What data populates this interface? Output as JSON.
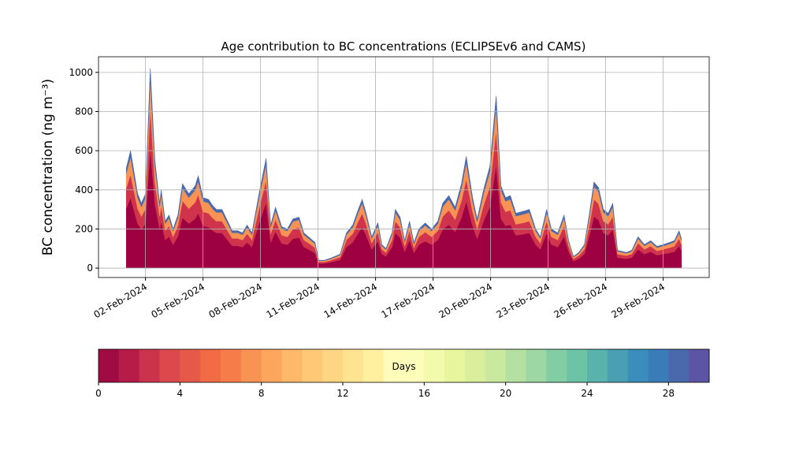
{
  "chart_data": {
    "type": "stacked_area",
    "title": "Age contribution to BC concentrations (ECLIPSEv6 and CAMS)",
    "ylabel": "BC concentration (ng m⁻³)",
    "x": [
      1.0,
      1.22,
      1.59,
      1.79,
      2.0,
      2.25,
      2.49,
      2.74,
      2.82,
      3.03,
      3.23,
      3.44,
      3.69,
      3.93,
      4.26,
      4.59,
      4.75,
      5.0,
      5.29,
      5.5,
      5.7,
      5.99,
      6.23,
      6.52,
      6.81,
      7.06,
      7.3,
      7.55,
      7.96,
      8.29,
      8.53,
      8.78,
      9.11,
      9.4,
      9.69,
      10.01,
      10.26,
      10.5,
      10.84,
      11.04,
      11.33,
      11.66,
      12.15,
      12.48,
      12.81,
      13.1,
      13.3,
      13.51,
      13.8,
      14.12,
      14.33,
      14.54,
      14.86,
      15.03,
      15.28,
      15.52,
      15.77,
      16.0,
      16.26,
      16.59,
      16.92,
      17.25,
      17.5,
      17.82,
      18.15,
      18.48,
      18.73,
      19.06,
      19.3,
      19.63,
      19.96,
      20.29,
      20.54,
      20.78,
      21.03,
      21.32,
      21.73,
      22.02,
      22.35,
      22.59,
      22.92,
      23.17,
      23.5,
      23.83,
      24.07,
      24.32,
      24.6,
      24.89,
      25.14,
      25.39,
      25.63,
      25.88,
      26.13,
      26.37,
      26.62,
      27.07,
      27.36,
      27.69,
      28.02,
      28.35,
      28.68,
      29.0,
      29.33,
      29.58,
      29.83,
      29.95
    ],
    "series": [
      {
        "color": "#9e0142",
        "values": [
          306,
          360,
          228,
          198,
          228,
          612,
          330,
          198,
          240,
          144,
          162,
          120,
          162,
          258,
          228,
          252,
          282,
          216,
          210,
          192,
          180,
          180,
          150,
          114,
          114,
          108,
          132,
          108,
          240,
          336,
          132,
          186,
          126,
          120,
          150,
          156,
          108,
          96,
          78,
          24,
          24,
          30,
          42,
          108,
          132,
          180,
          210,
          168,
          96,
          138,
          72,
          60,
          108,
          180,
          156,
          84,
          144,
          78,
          120,
          138,
          120,
          144,
          198,
          222,
          186,
          258,
          342,
          216,
          150,
          240,
          312,
          528,
          252,
          216,
          222,
          168,
          174,
          180,
          120,
          96,
          180,
          120,
          108,
          162,
          84,
          36,
          48,
          72,
          162,
          264,
          246,
          180,
          168,
          198,
          54,
          48,
          54,
          96,
          72,
          84,
          66,
          72,
          78,
          84,
          114,
          90
        ]
      },
      {
        "color": "#d0344d",
        "values": [
          102,
          120,
          76,
          66,
          76,
          204,
          110,
          66,
          80,
          48,
          54,
          40,
          54,
          86,
          76,
          84,
          94,
          72,
          70,
          64,
          60,
          60,
          50,
          38,
          38,
          36,
          44,
          36,
          80,
          112,
          44,
          62,
          42,
          40,
          50,
          52,
          36,
          32,
          26,
          8,
          8,
          10,
          14,
          36,
          44,
          60,
          70,
          56,
          32,
          46,
          24,
          20,
          36,
          60,
          52,
          28,
          48,
          26,
          40,
          46,
          40,
          48,
          66,
          74,
          62,
          86,
          114,
          72,
          50,
          80,
          104,
          176,
          84,
          72,
          74,
          56,
          58,
          60,
          40,
          32,
          60,
          40,
          36,
          54,
          28,
          12,
          16,
          24,
          54,
          88,
          82,
          60,
          56,
          66,
          18,
          16,
          18,
          32,
          24,
          28,
          22,
          24,
          26,
          28,
          38,
          30
        ]
      },
      {
        "color": "#f99354",
        "values": [
          77,
          90,
          57,
          50,
          57,
          153,
          83,
          50,
          60,
          36,
          41,
          30,
          41,
          65,
          57,
          63,
          71,
          54,
          53,
          48,
          45,
          45,
          38,
          29,
          29,
          27,
          33,
          27,
          60,
          84,
          33,
          47,
          32,
          30,
          38,
          39,
          27,
          24,
          20,
          6,
          6,
          8,
          11,
          27,
          33,
          45,
          53,
          42,
          24,
          35,
          18,
          15,
          27,
          45,
          39,
          21,
          36,
          20,
          30,
          35,
          30,
          36,
          50,
          56,
          47,
          65,
          86,
          54,
          38,
          60,
          78,
          132,
          63,
          54,
          56,
          42,
          44,
          45,
          30,
          24,
          45,
          30,
          27,
          41,
          21,
          9,
          12,
          18,
          41,
          66,
          62,
          45,
          42,
          50,
          14,
          12,
          14,
          24,
          18,
          21,
          17,
          18,
          20,
          21,
          29,
          23
        ]
      },
      {
        "color": "#4a69ac",
        "values": [
          26,
          30,
          19,
          17,
          19,
          51,
          28,
          17,
          20,
          12,
          14,
          10,
          14,
          22,
          19,
          21,
          24,
          18,
          18,
          16,
          15,
          15,
          13,
          10,
          10,
          9,
          11,
          9,
          20,
          28,
          11,
          16,
          11,
          10,
          13,
          13,
          9,
          8,
          7,
          2,
          2,
          3,
          4,
          9,
          11,
          15,
          18,
          14,
          8,
          12,
          6,
          5,
          9,
          15,
          13,
          7,
          12,
          7,
          10,
          12,
          10,
          12,
          17,
          19,
          16,
          22,
          29,
          18,
          13,
          20,
          26,
          44,
          21,
          18,
          19,
          14,
          15,
          15,
          10,
          8,
          15,
          10,
          9,
          14,
          7,
          3,
          4,
          6,
          14,
          22,
          21,
          15,
          14,
          17,
          5,
          4,
          5,
          8,
          6,
          7,
          6,
          6,
          7,
          7,
          10,
          8
        ]
      }
    ],
    "xlim": [
      -0.45,
      31.4
    ],
    "xticks": [
      {
        "value": 2,
        "label": "02-Feb-2024"
      },
      {
        "value": 5,
        "label": "05-Feb-2024"
      },
      {
        "value": 8,
        "label": "08-Feb-2024"
      },
      {
        "value": 11,
        "label": "11-Feb-2024"
      },
      {
        "value": 14,
        "label": "14-Feb-2024"
      },
      {
        "value": 17,
        "label": "17-Feb-2024"
      },
      {
        "value": 20,
        "label": "20-Feb-2024"
      },
      {
        "value": 23,
        "label": "23-Feb-2024"
      },
      {
        "value": 26,
        "label": "26-Feb-2024"
      },
      {
        "value": 29,
        "label": "29-Feb-2024"
      }
    ],
    "ylim": [
      -48,
      1080
    ],
    "yticks": [
      0,
      200,
      400,
      600,
      800,
      1000
    ],
    "grid": true,
    "colorbar": {
      "label": "Days",
      "lim": [
        0,
        30
      ],
      "ticks": [
        0,
        4,
        8,
        12,
        16,
        20,
        24,
        28
      ],
      "colors": [
        "#a00b44",
        "#b71c48",
        "#cb334c",
        "#dc494c",
        "#e65948",
        "#f16b45",
        "#f67d4a",
        "#f99354",
        "#fca55d",
        "#fdb86a",
        "#fec877",
        "#fed683",
        "#fee491",
        "#fff09f",
        "#fffbb9",
        "#fbfdb8",
        "#f2faac",
        "#e7f59c",
        "#d9ef9b",
        "#c8e99e",
        "#b4e1a1",
        "#9cd7a4",
        "#83cda5",
        "#6cc3a5",
        "#59b2ab",
        "#4aa0b2",
        "#3b8ebb",
        "#3a7cb8",
        "#4a69ac",
        "#5c54a4"
      ]
    }
  }
}
